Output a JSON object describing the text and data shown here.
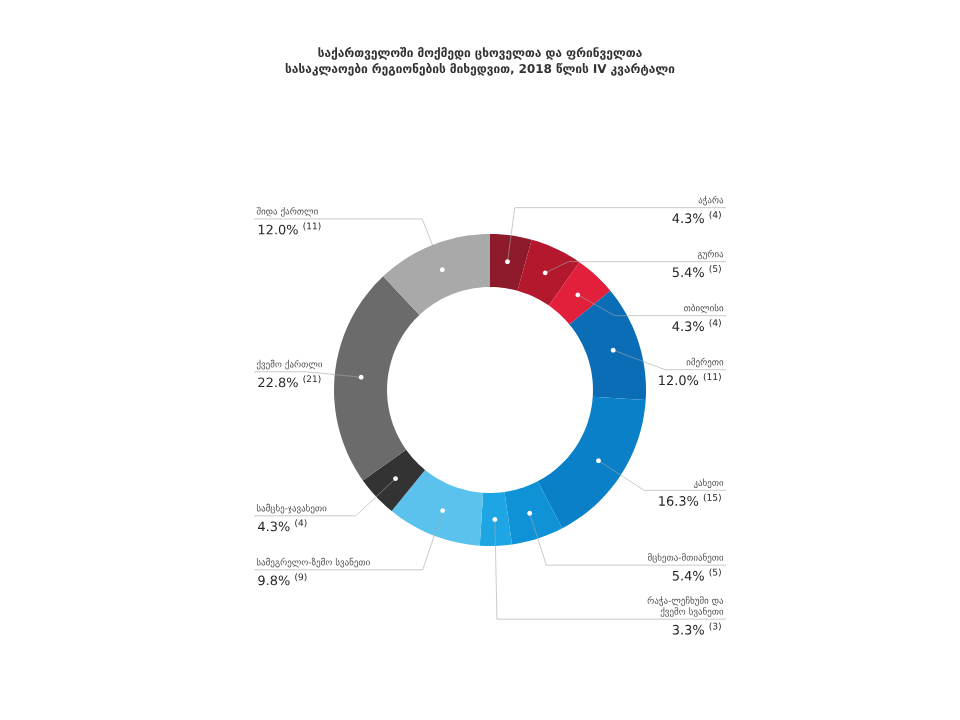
{
  "chart_data": {
    "type": "donut",
    "title": "საქართველოში მოქმედი ცხოველთა და ფრინველთა სასაკლაოები რეგიონების მიხედვით, 2018 წლის IV კვარტალი",
    "categories": [
      "აჭარა",
      "გურია",
      "თბილისი",
      "იმერეთი",
      "კახეთი",
      "მცხეთა-მთიანეთი",
      "რაჭა-ლეჩხუმი და ქვემო სვანეთი",
      "სამეგრელო-ზემო სვანეთი",
      "სამცხე-ჯავახეთი",
      "ქვემო ქართლი",
      "შიდა ქართლი"
    ],
    "values": [
      4.3,
      5.4,
      4.3,
      12.0,
      16.3,
      5.4,
      3.3,
      9.8,
      4.3,
      22.8,
      12.0
    ],
    "colors": [
      "#8e1b2c",
      "#b3182d",
      "#e2203b",
      "#0b6db5",
      "#0a80c8",
      "#1093d6",
      "#1ea6e4",
      "#5bc2ee",
      "#333333",
      "#6b6b6b",
      "#a9a9a9"
    ],
    "value_labels": [
      "4.3% $^{(4)}$",
      "5.4% $^{(5)}$",
      "4.3% $^{(4)}$",
      "12.0% $^{(11)}$",
      "16.3% $^{(15)}$",
      "5.4% $^{(5)}$",
      "3.3% $^{(3)}$",
      "9.8% $^{(9)}$",
      "4.3% $^{(4)}$",
      "22.8% $^{(21)}$",
      "12.0% $^{(11)}$"
    ]
  }
}
